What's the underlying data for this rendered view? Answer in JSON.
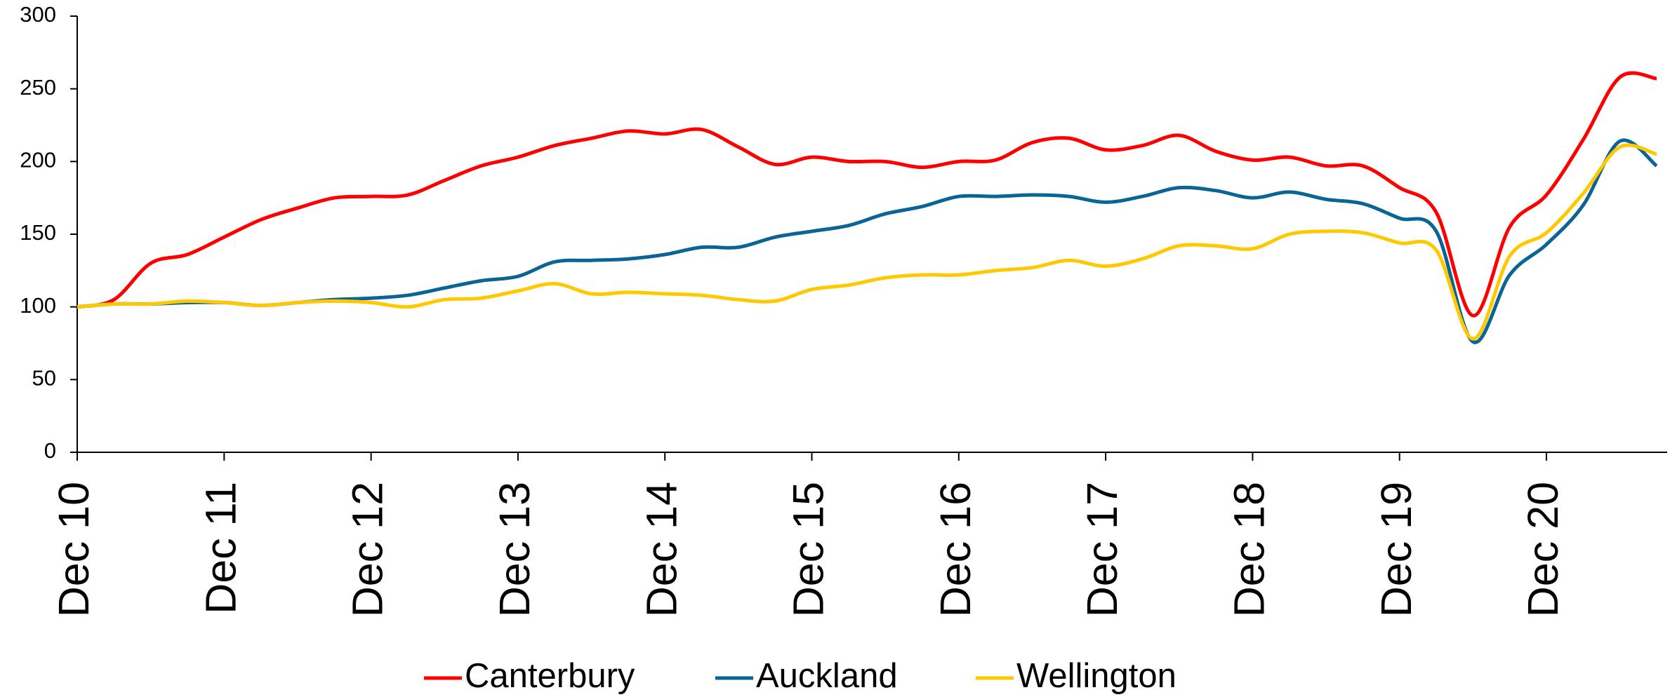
{
  "chart_data": {
    "type": "line",
    "categories": [
      "Dec 10",
      null,
      null,
      null,
      "Dec 11",
      null,
      null,
      null,
      "Dec 12",
      null,
      null,
      null,
      "Dec 13",
      null,
      null,
      null,
      "Dec 14",
      null,
      null,
      null,
      "Dec 15",
      null,
      null,
      null,
      "Dec 16",
      null,
      null,
      null,
      "Dec 17",
      null,
      null,
      null,
      "Dec 18",
      null,
      null,
      null,
      "Dec 19",
      null,
      null,
      null,
      "Dec 20",
      null,
      null,
      null
    ],
    "series": [
      {
        "name": "Canterbury",
        "color": "#ff0000",
        "values": [
          100,
          105,
          130,
          136,
          148,
          160,
          168,
          175,
          176,
          177,
          187,
          197,
          203,
          211,
          216,
          221,
          219,
          222,
          210,
          198,
          203,
          200,
          200,
          196,
          200,
          201,
          213,
          216,
          208,
          211,
          218,
          207,
          201,
          203,
          197,
          197,
          182,
          165,
          94,
          155,
          177,
          215,
          258,
          257
        ]
      },
      {
        "name": "Auckland",
        "color": "#0a6496",
        "values": [
          100,
          102,
          102,
          103,
          103,
          101,
          103,
          105,
          106,
          108,
          113,
          118,
          121,
          131,
          132,
          133,
          136,
          141,
          141,
          148,
          152,
          156,
          164,
          169,
          176,
          176,
          177,
          176,
          172,
          176,
          182,
          180,
          175,
          179,
          174,
          171,
          161,
          152,
          76,
          122,
          143,
          170,
          214,
          197
        ]
      },
      {
        "name": "Wellington",
        "color": "#ffc800",
        "values": [
          100,
          102,
          102,
          104,
          103,
          101,
          103,
          104,
          103,
          100,
          105,
          106,
          111,
          116,
          109,
          110,
          109,
          108,
          105,
          104,
          112,
          115,
          120,
          122,
          122,
          125,
          127,
          132,
          128,
          133,
          142,
          142,
          140,
          150,
          152,
          151,
          144,
          139,
          78,
          135,
          151,
          178,
          210,
          205
        ]
      }
    ],
    "ylim": [
      0,
      300
    ],
    "yticks": [
      0,
      50,
      100,
      150,
      200,
      250,
      300
    ],
    "grid": false,
    "legend": "bottom"
  }
}
